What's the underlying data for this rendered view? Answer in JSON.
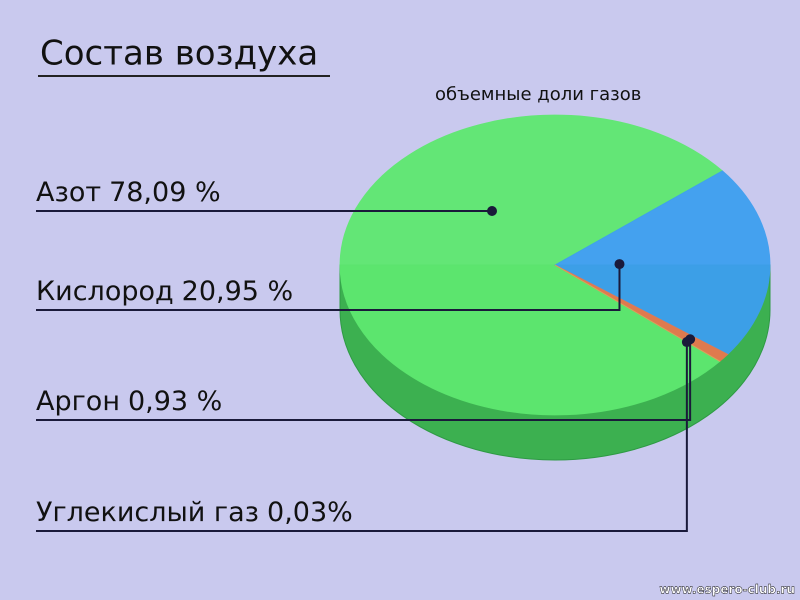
{
  "chart_data": {
    "type": "pie",
    "title": "Состав воздуха",
    "subtitle": "объемные доли газов",
    "categories": [
      "Азот",
      "Кислород",
      "Аргон",
      "Углекислый газ"
    ],
    "values": [
      78.09,
      20.95,
      0.93,
      0.03
    ],
    "value_labels": [
      "78,09 %",
      "20,95 %",
      "0,93 %",
      "0,03%"
    ],
    "colors": [
      "#5ee870",
      "#3d9ff0",
      "#e8784e",
      "#d8a45c"
    ],
    "watermark": "www.espero-club.ru"
  }
}
